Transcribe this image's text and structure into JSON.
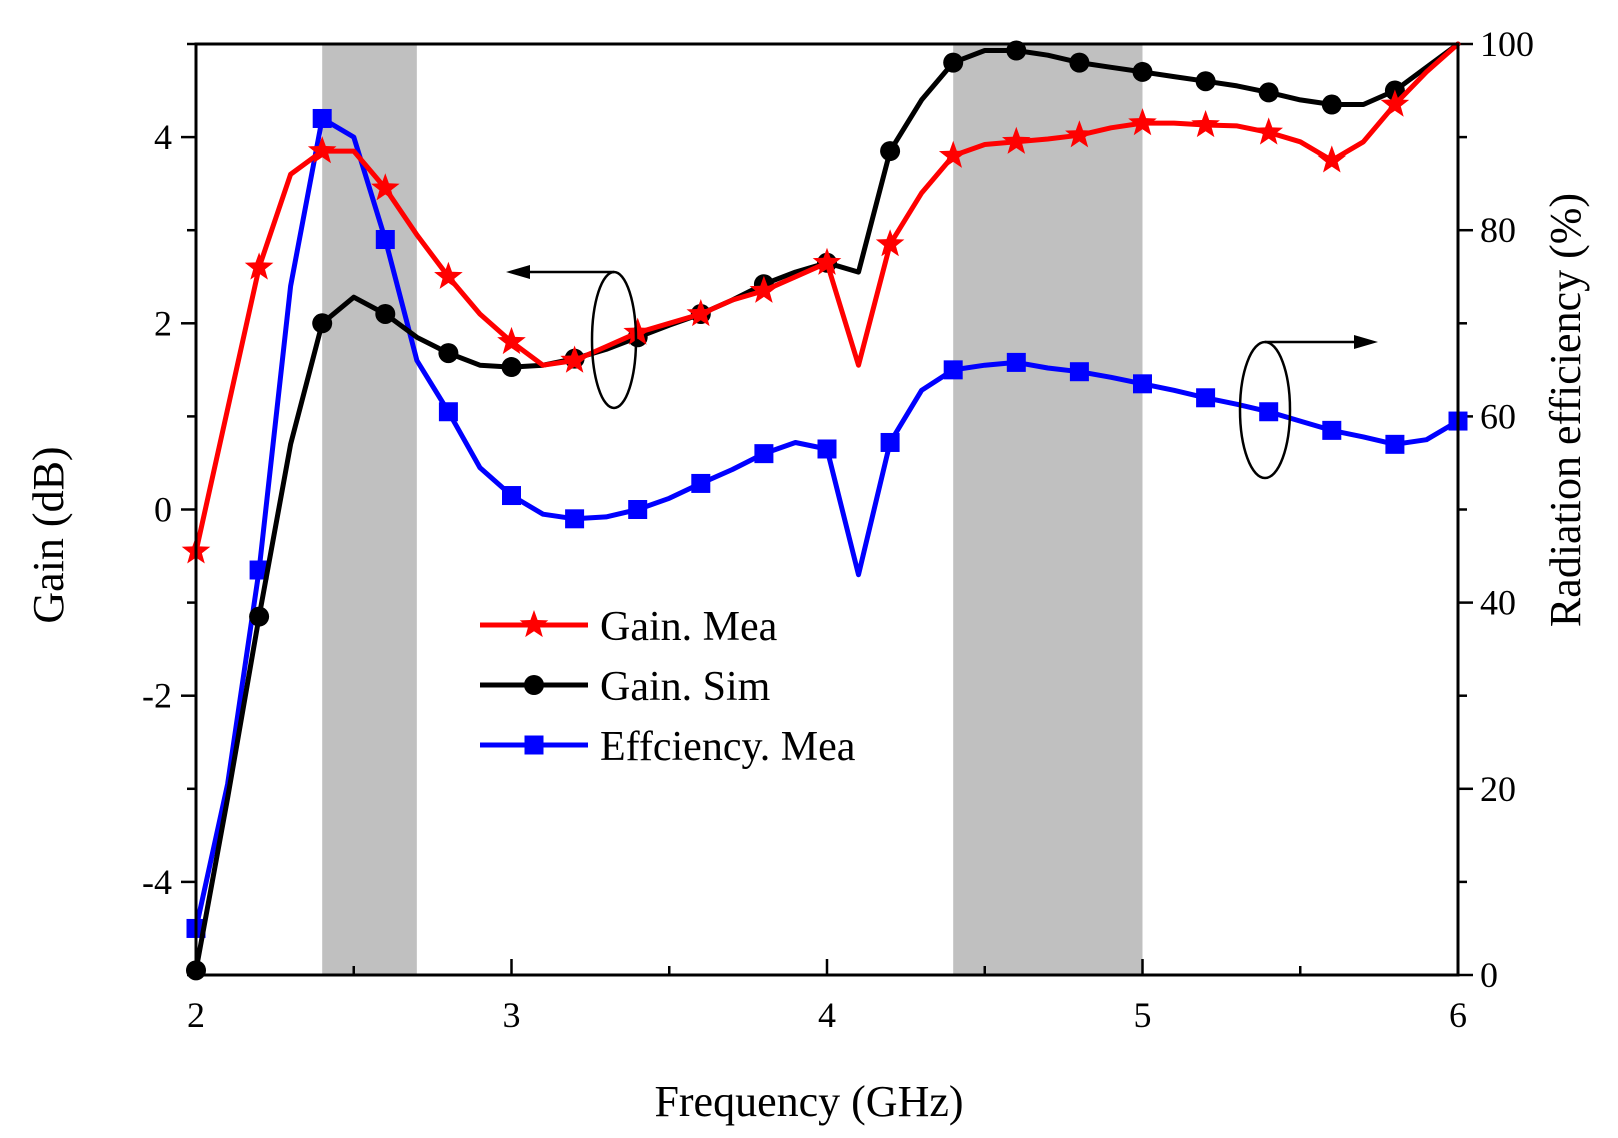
{
  "chart_data": {
    "type": "line",
    "title": "",
    "xlabel": "Frequency (GHz)",
    "ylabel": "Gain (dB)",
    "y2label": "Radiation efficiency (%)",
    "xlim": [
      2,
      6
    ],
    "ylim": [
      -5,
      5
    ],
    "y2lim": [
      0,
      100
    ],
    "xticks": [
      2,
      3,
      4,
      5,
      6
    ],
    "yticks": [
      -4,
      -2,
      0,
      2,
      4
    ],
    "y2ticks": [
      0,
      20,
      40,
      60,
      80,
      100
    ],
    "xtick_labels": [
      "2",
      "3",
      "4",
      "5",
      "6"
    ],
    "ytick_labels": [
      "-4",
      "-2",
      "0",
      "2",
      "4"
    ],
    "y2tick_labels": [
      "0",
      "20",
      "40",
      "60",
      "80",
      "100"
    ],
    "shaded_bands": [
      [
        2.4,
        2.7
      ],
      [
        4.4,
        5.0
      ]
    ],
    "legend_position": "center",
    "colors": {
      "gain_mea": "#ff0000",
      "gain_sim": "#000000",
      "eff_mea": "#0000ff",
      "band": "#c0c0c0"
    },
    "series": [
      {
        "name": "Gain. Mea",
        "axis": "left",
        "marker": "star",
        "x": [
          2.0,
          2.2,
          2.3,
          2.4,
          2.5,
          2.6,
          2.7,
          2.8,
          2.9,
          3.0,
          3.1,
          3.2,
          3.3,
          3.4,
          3.5,
          3.6,
          3.7,
          3.8,
          3.9,
          4.0,
          4.1,
          4.2,
          4.3,
          4.4,
          4.5,
          4.6,
          4.7,
          4.8,
          4.9,
          5.0,
          5.1,
          5.2,
          5.3,
          5.4,
          5.5,
          5.6,
          5.7,
          5.8,
          5.9,
          6.0
        ],
        "values": [
          -0.45,
          2.6,
          3.6,
          3.85,
          3.85,
          3.45,
          2.95,
          2.5,
          2.1,
          1.8,
          1.55,
          1.6,
          1.75,
          1.9,
          2.0,
          2.1,
          2.25,
          2.35,
          2.5,
          2.65,
          1.55,
          2.85,
          3.4,
          3.8,
          3.92,
          3.95,
          3.98,
          4.02,
          4.1,
          4.15,
          4.15,
          4.13,
          4.12,
          4.05,
          3.95,
          3.75,
          3.95,
          4.35,
          4.7,
          5.0
        ],
        "marker_x": [
          2.0,
          2.2,
          2.4,
          2.6,
          2.8,
          3.0,
          3.2,
          3.4,
          3.6,
          3.8,
          4.0,
          4.2,
          4.4,
          4.6,
          4.8,
          5.0,
          5.2,
          5.4,
          5.6,
          5.8
        ]
      },
      {
        "name": "Gain. Sim",
        "axis": "left",
        "marker": "circle",
        "x": [
          2.0,
          2.1,
          2.2,
          2.3,
          2.4,
          2.5,
          2.6,
          2.7,
          2.8,
          2.9,
          3.0,
          3.1,
          3.2,
          3.3,
          3.4,
          3.5,
          3.6,
          3.7,
          3.8,
          3.9,
          4.0,
          4.1,
          4.2,
          4.3,
          4.4,
          4.5,
          4.6,
          4.7,
          4.8,
          4.9,
          5.0,
          5.1,
          5.2,
          5.3,
          5.4,
          5.5,
          5.6,
          5.7,
          5.8,
          5.9,
          6.0
        ],
        "values": [
          -4.95,
          -3.1,
          -1.15,
          0.7,
          2.0,
          2.28,
          2.1,
          1.85,
          1.68,
          1.55,
          1.53,
          1.55,
          1.62,
          1.72,
          1.85,
          1.98,
          2.1,
          2.25,
          2.42,
          2.55,
          2.65,
          2.55,
          3.85,
          4.4,
          4.8,
          4.93,
          4.93,
          4.88,
          4.8,
          4.75,
          4.7,
          4.65,
          4.6,
          4.55,
          4.48,
          4.4,
          4.35,
          4.35,
          4.5,
          4.75,
          5.0
        ],
        "marker_x": [
          2.0,
          2.2,
          2.4,
          2.6,
          2.8,
          3.0,
          3.2,
          3.4,
          3.6,
          3.8,
          4.0,
          4.2,
          4.4,
          4.6,
          4.8,
          5.0,
          5.2,
          5.4,
          5.6,
          5.8
        ]
      },
      {
        "name": "Effciency. Mea",
        "axis": "right",
        "marker": "square",
        "x": [
          2.0,
          2.1,
          2.2,
          2.3,
          2.4,
          2.5,
          2.6,
          2.7,
          2.8,
          2.9,
          3.0,
          3.1,
          3.2,
          3.3,
          3.4,
          3.5,
          3.6,
          3.7,
          3.8,
          3.9,
          4.0,
          4.1,
          4.2,
          4.3,
          4.4,
          4.5,
          4.6,
          4.7,
          4.8,
          4.9,
          5.0,
          5.1,
          5.2,
          5.3,
          5.4,
          5.5,
          5.6,
          5.7,
          5.8,
          5.9,
          6.0
        ],
        "values": [
          5.0,
          20.5,
          43.5,
          74.0,
          92.0,
          90.0,
          79.0,
          66.0,
          60.5,
          54.5,
          51.5,
          49.5,
          49.0,
          49.2,
          50.0,
          51.2,
          52.8,
          54.3,
          56.0,
          57.2,
          56.5,
          43.0,
          57.2,
          62.8,
          65.0,
          65.5,
          65.8,
          65.2,
          64.8,
          64.2,
          63.5,
          62.8,
          62.0,
          61.3,
          60.5,
          59.5,
          58.5,
          57.8,
          57.0,
          57.5,
          59.5
        ],
        "marker_x": [
          2.0,
          2.2,
          2.4,
          2.6,
          2.8,
          3.0,
          3.2,
          3.4,
          3.6,
          3.8,
          4.0,
          4.2,
          4.4,
          4.6,
          4.8,
          5.0,
          5.2,
          5.4,
          5.6,
          5.8,
          6.0
        ]
      }
    ]
  }
}
